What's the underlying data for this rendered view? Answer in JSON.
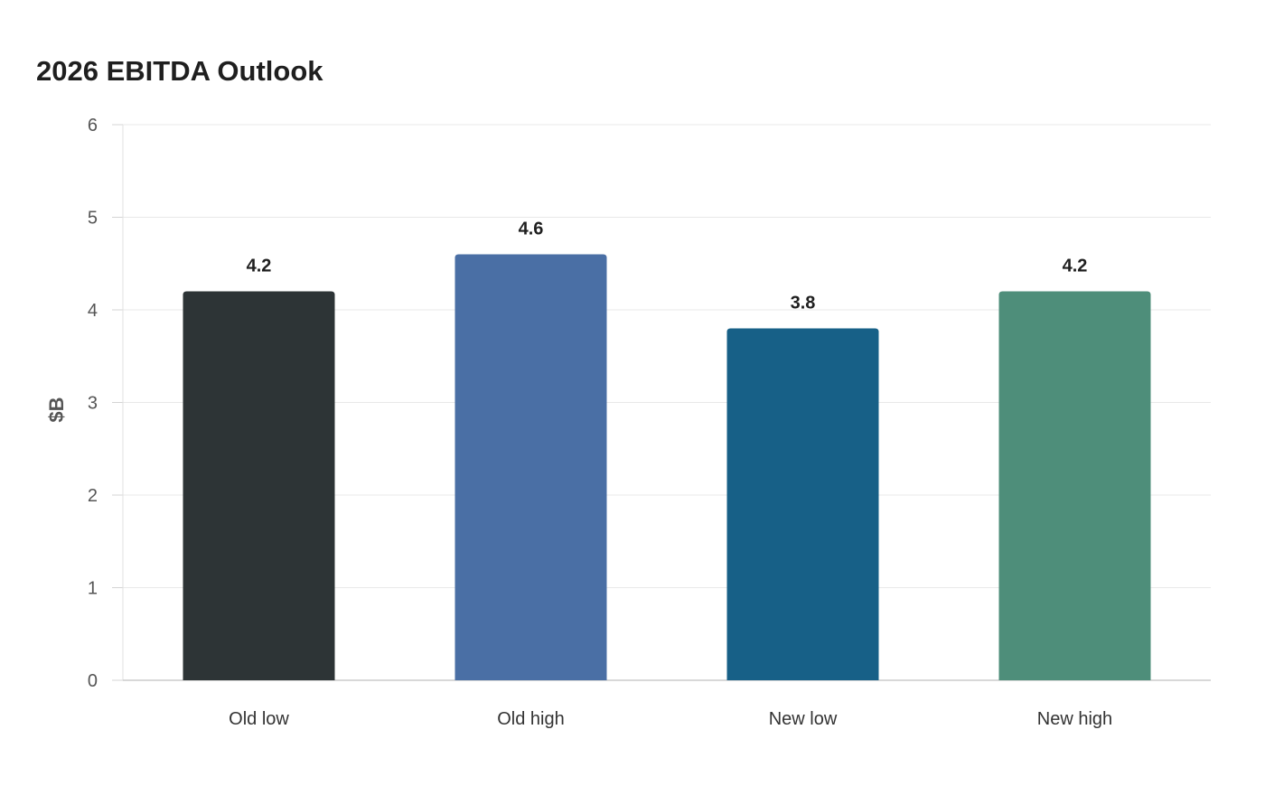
{
  "chart_data": {
    "type": "bar",
    "title": "2026 EBITDA Outlook",
    "xlabel": "",
    "ylabel": "$B",
    "categories": [
      "Old low",
      "Old high",
      "New low",
      "New high"
    ],
    "values": [
      4.2,
      4.6,
      3.8,
      4.2
    ],
    "data_labels": [
      "4.2",
      "4.6",
      "3.8",
      "4.2"
    ],
    "colors": [
      "#2d3436",
      "#4a6fa5",
      "#176087",
      "#4e8e7a"
    ],
    "ylim": [
      0,
      6
    ],
    "yticks": [
      0,
      1,
      2,
      3,
      4,
      5,
      6
    ],
    "grid": true,
    "legend": "none"
  }
}
